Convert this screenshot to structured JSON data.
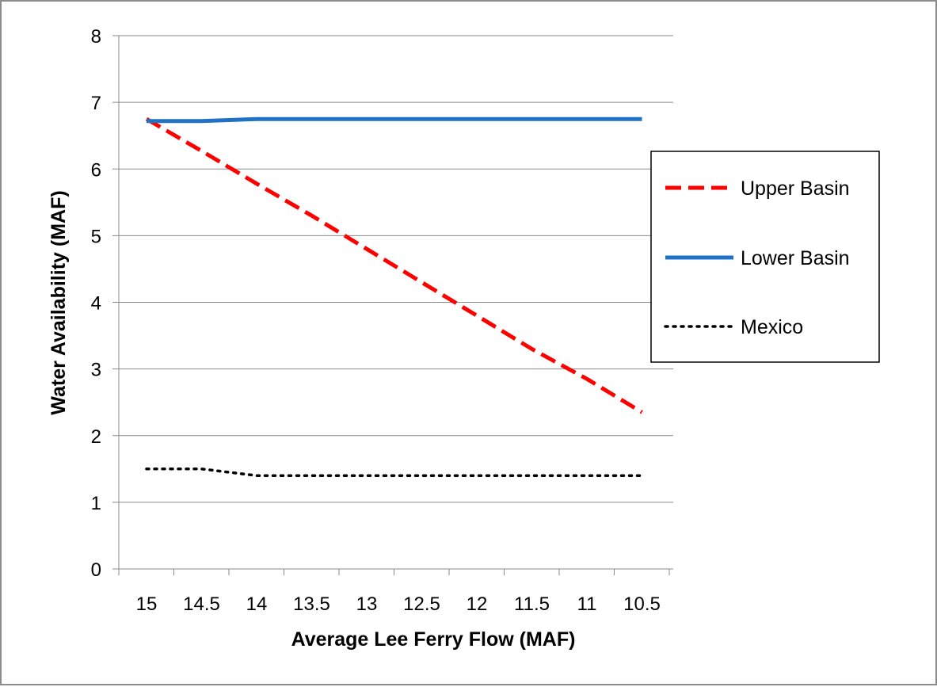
{
  "chart_data": {
    "type": "line",
    "title": "",
    "xlabel": "Average Lee Ferry Flow (MAF)",
    "ylabel": "Water Availability (MAF)",
    "x_categories": [
      "15",
      "14.5",
      "14",
      "13.5",
      "13",
      "12.5",
      "12",
      "11.5",
      "11",
      "10.5"
    ],
    "ylim": [
      0,
      8
    ],
    "yticks": [
      "0",
      "1",
      "2",
      "3",
      "4",
      "5",
      "6",
      "7",
      "8"
    ],
    "grid": true,
    "legend_position": "right",
    "series": [
      {
        "name": "Upper Basin",
        "color": "#ff0000",
        "style": "dashed",
        "x": [
          15,
          14.5,
          14,
          13.5,
          13,
          12.5,
          12,
          11.5,
          11,
          10.5
        ],
        "values": [
          6.75,
          6.27,
          5.78,
          5.3,
          4.8,
          4.3,
          3.8,
          3.3,
          2.85,
          2.35
        ]
      },
      {
        "name": "Lower Basin",
        "color": "#1f72c4",
        "style": "solid",
        "x": [
          15,
          14.5,
          14,
          13.5,
          13,
          12.5,
          12,
          11.5,
          11,
          10.5
        ],
        "values": [
          6.72,
          6.72,
          6.75,
          6.75,
          6.75,
          6.75,
          6.75,
          6.75,
          6.75,
          6.75
        ]
      },
      {
        "name": "Mexico",
        "color": "#000000",
        "style": "dotted",
        "x": [
          15,
          14.5,
          14,
          13.5,
          13,
          12.5,
          12,
          11.5,
          11,
          10.5
        ],
        "values": [
          1.5,
          1.5,
          1.4,
          1.4,
          1.4,
          1.4,
          1.4,
          1.4,
          1.4,
          1.4
        ]
      }
    ]
  }
}
